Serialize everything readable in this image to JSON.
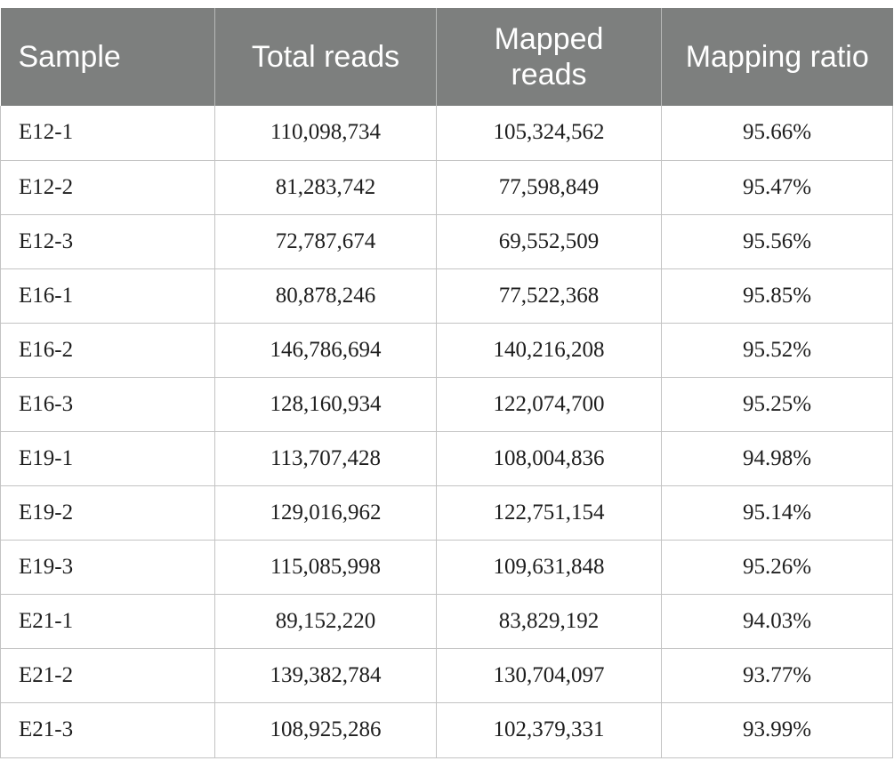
{
  "table": {
    "headers": {
      "sample": "Sample",
      "total_reads": "Total reads",
      "mapped_reads": "Mapped reads",
      "mapping_ratio": "Mapping ratio"
    },
    "rows": [
      {
        "sample": "E12-1",
        "total_reads": "110,098,734",
        "mapped_reads": "105,324,562",
        "mapping_ratio": "95.66%"
      },
      {
        "sample": "E12-2",
        "total_reads": "81,283,742",
        "mapped_reads": "77,598,849",
        "mapping_ratio": "95.47%"
      },
      {
        "sample": "E12-3",
        "total_reads": "72,787,674",
        "mapped_reads": "69,552,509",
        "mapping_ratio": "95.56%"
      },
      {
        "sample": "E16-1",
        "total_reads": "80,878,246",
        "mapped_reads": "77,522,368",
        "mapping_ratio": "95.85%"
      },
      {
        "sample": "E16-2",
        "total_reads": "146,786,694",
        "mapped_reads": "140,216,208",
        "mapping_ratio": "95.52%"
      },
      {
        "sample": "E16-3",
        "total_reads": "128,160,934",
        "mapped_reads": "122,074,700",
        "mapping_ratio": "95.25%"
      },
      {
        "sample": "E19-1",
        "total_reads": "113,707,428",
        "mapped_reads": "108,004,836",
        "mapping_ratio": "94.98%"
      },
      {
        "sample": "E19-2",
        "total_reads": "129,016,962",
        "mapped_reads": "122,751,154",
        "mapping_ratio": "95.14%"
      },
      {
        "sample": "E19-3",
        "total_reads": "115,085,998",
        "mapped_reads": "109,631,848",
        "mapping_ratio": "95.26%"
      },
      {
        "sample": "E21-1",
        "total_reads": "89,152,220",
        "mapped_reads": "83,829,192",
        "mapping_ratio": "94.03%"
      },
      {
        "sample": "E21-2",
        "total_reads": "139,382,784",
        "mapped_reads": "130,704,097",
        "mapping_ratio": "93.77%"
      },
      {
        "sample": "E21-3",
        "total_reads": "108,925,286",
        "mapped_reads": "102,379,331",
        "mapping_ratio": "93.99%"
      }
    ]
  },
  "colors": {
    "header_background": "#7d7f7e",
    "header_text": "#ffffff",
    "grid_line": "#c3c3c3"
  }
}
